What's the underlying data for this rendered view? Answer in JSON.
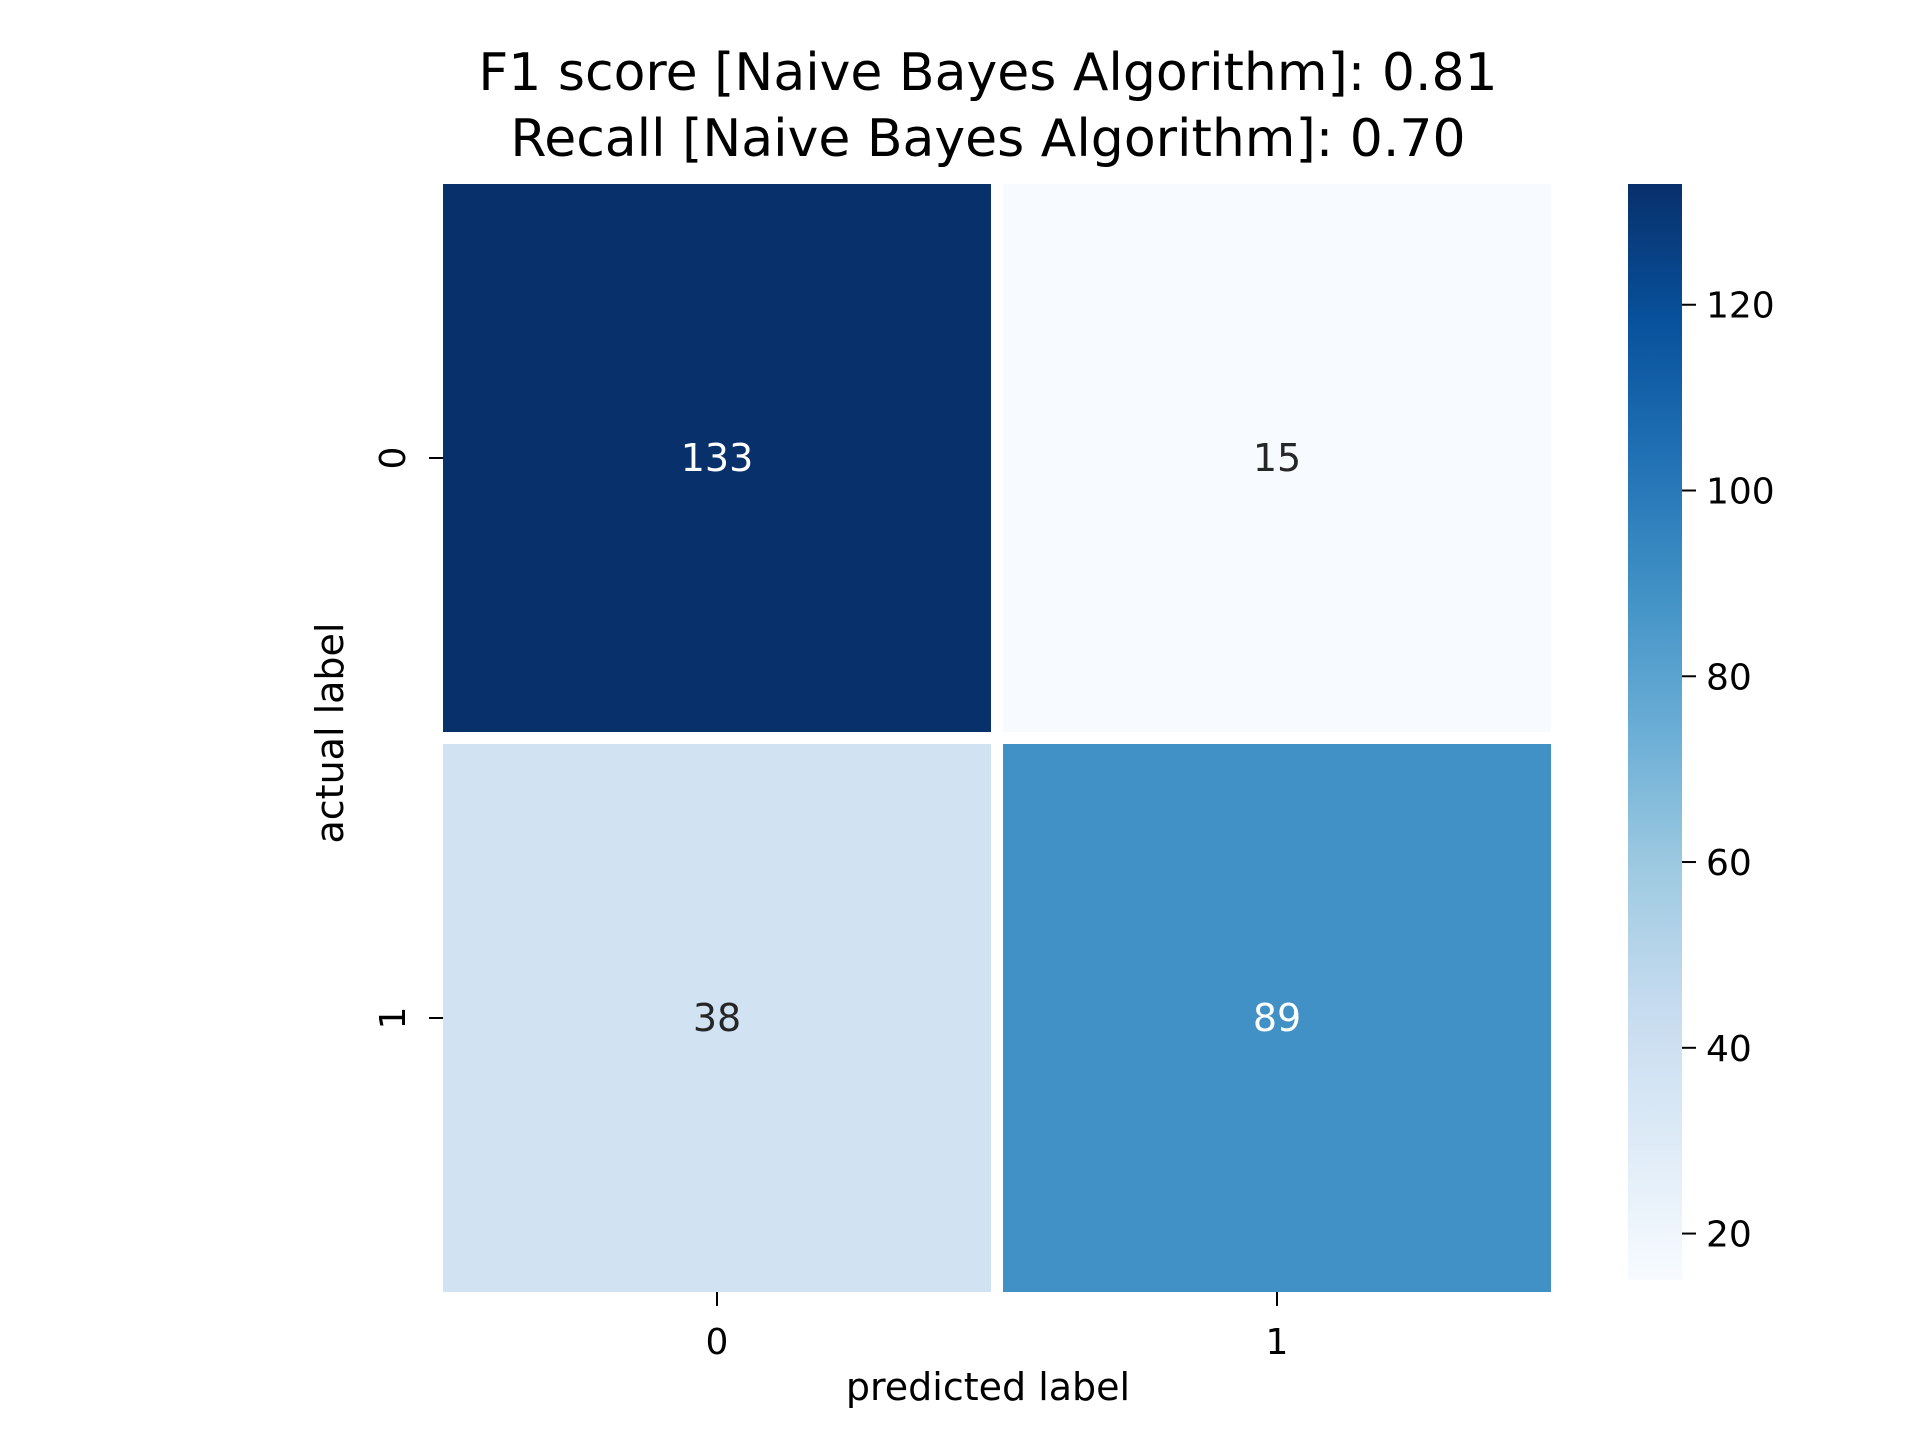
{
  "chart_data": {
    "type": "heatmap",
    "title_lines": [
      "F1 score [Naive Bayes Algorithm]: 0.81",
      "Recall [Naive Bayes Algorithm]: 0.70"
    ],
    "xlabel": "predicted label",
    "ylabel": "actual label",
    "x_categories": [
      "0",
      "1"
    ],
    "y_categories": [
      "0",
      "1"
    ],
    "values": [
      [
        133,
        15
      ],
      [
        38,
        89
      ]
    ],
    "cell_labels": [
      [
        "133",
        "15"
      ],
      [
        "38",
        "89"
      ]
    ],
    "colormap": "Blues",
    "colorbar": {
      "min": 15,
      "max": 133,
      "ticks": [
        20,
        40,
        60,
        80,
        100,
        120
      ],
      "tick_labels": [
        "20",
        "40",
        "60",
        "80",
        "100",
        "120"
      ]
    },
    "grid": false,
    "legend": "colorbar-right"
  }
}
